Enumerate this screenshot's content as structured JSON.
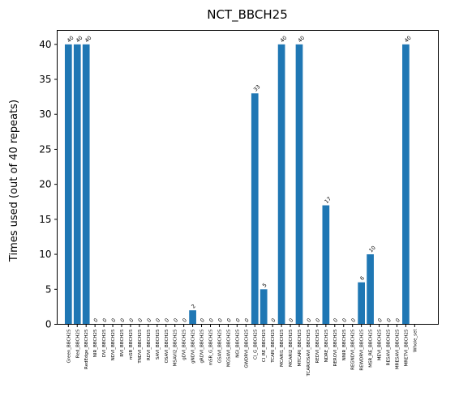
{
  "chart_data": {
    "type": "bar",
    "title": "NCT_BBCH25",
    "xlabel": "",
    "ylabel": "Times used (out of 40 repeats)",
    "ylim": [
      0,
      42
    ],
    "yticks": [
      0,
      5,
      10,
      15,
      20,
      25,
      30,
      35,
      40
    ],
    "grid": false,
    "bar_color": "#1f77b4",
    "categories": [
      "Green_BBCH25",
      "Red_BBCH25",
      "RedEdge_BBCH25",
      "NIR_BBCH25",
      "DVI_BBCH25",
      "NDVI_BBCH25",
      "RVI_BBCH25",
      "mSR_BBCH25",
      "TNDVI_BBCH25",
      "RDVI_BBCH25",
      "SAVI_BBCH25",
      "OSAVI_BBCH25",
      "MSAVI2_BBCH25",
      "gDVI_BBCH25",
      "gNDVI_BBCH25",
      "gRDVI_BBCH25",
      "mSR_G_BBCH25",
      "GSAVI_BBCH25",
      "MGSAVI_BBCH25",
      "NGI_BBCH25",
      "GWDRVI_BBCH25",
      "CI_G_BBCH25",
      "CI_RE_BBCH25",
      "TCARI_BBCH25",
      "MCARI1_BBCH25",
      "MCARI2_BBCH25",
      "MTCARI_BBCH25",
      "TCARIOSAVI_BBCH25",
      "REDVI_BBCH25",
      "NDRE_BBCH25",
      "REROVI_BBCH25",
      "NNIR_BBCH25",
      "REGNDVI_BBCH25",
      "REWDRVI_BBCH25",
      "MSR_RE_BBCH25",
      "MEVI_BBCH25",
      "RESAVI_BBCH25",
      "MRESAVI_BBCH25",
      "MRETVI_BBCH25",
      "Whole_set"
    ],
    "values": [
      40,
      40,
      40,
      0,
      0,
      0,
      0,
      0,
      0,
      0,
      0,
      0,
      0,
      0,
      2,
      0,
      0,
      0,
      0,
      0,
      0,
      33,
      5,
      0,
      40,
      0,
      40,
      0,
      0,
      17,
      0,
      0,
      0,
      6,
      10,
      0,
      0,
      0,
      40,
      null
    ],
    "data_labels": [
      "40",
      "40",
      "40",
      "0",
      "0",
      "0",
      "0",
      "0",
      "0",
      "0",
      "0",
      "0",
      "0",
      "0",
      "2",
      "0",
      "0",
      "0",
      "0",
      "0",
      "0",
      "33",
      "5",
      "0",
      "40",
      "0",
      "40",
      "0",
      "0",
      "17",
      "0",
      "0",
      "0",
      "6",
      "10",
      "0",
      "0",
      "0",
      "40",
      ""
    ]
  }
}
